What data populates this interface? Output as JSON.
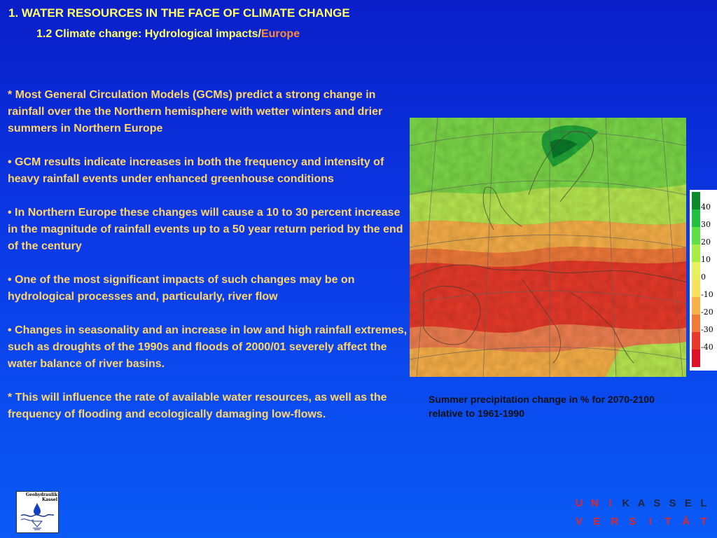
{
  "title": "1. WATER RESOURCES IN THE FACE OF CLIMATE CHANGE",
  "subtitle": {
    "main": "1.2  Climate change: Hydrological impacts/",
    "accent": "Europe"
  },
  "bullets": [
    "* Most General Circulation Models (GCMs) predict a strong change in rainfall over the the Northern  hemisphere  with wetter winters and drier summers in Northern Europe",
    "• GCM results indicate increases in both the frequency and intensity of heavy rainfall events under enhanced greenhouse conditions",
    "•  In Northern Europe these changes will cause a 10 to 30 percent increase in the magnitude of rainfall events up to a 50 year return period by the end of the century",
    "• One of the most significant impacts of such changes may be on hydrological processes and, particularly, river flow",
    "• Changes in seasonality and an increase in low and high rainfall extremes, such as  droughts of the 1990s and floods of 2000/01 severely affect the water balance of river basins.",
    "* This will influence the rate of available water resources, as well as the frequency of flooding and ecologically damaging low-flows."
  ],
  "legend": {
    "labels": [
      "40",
      "30",
      "20",
      "10",
      "0",
      "-10",
      "-20",
      "-30",
      "-40"
    ],
    "colors": [
      "#0a8a2a",
      "#22c040",
      "#5ee048",
      "#a8ec48",
      "#e8f060",
      "#f8e060",
      "#f8b048",
      "#f07a3a",
      "#e83a2a",
      "#e0102a"
    ]
  },
  "caption": "Summer precipitation change in % for 2070-2100  relative to 1961-1990",
  "logo": {
    "line1": "Geohydraulik",
    "line2": "Kassel"
  },
  "university": {
    "row1": [
      "U",
      "N",
      "I",
      "K",
      "A",
      "S",
      "S",
      "E",
      "L"
    ],
    "row2": [
      "V",
      "E",
      "R",
      "S",
      "I",
      "T",
      "Ä",
      "T"
    ]
  },
  "colors": {
    "background_top": "#0a1ec8",
    "background_bottom": "#0a5af6",
    "title": "#ffff66",
    "accent": "#ff8a3d",
    "body_text": "#ffd66a",
    "university_red": "#e02828",
    "university_dark": "#202840"
  }
}
